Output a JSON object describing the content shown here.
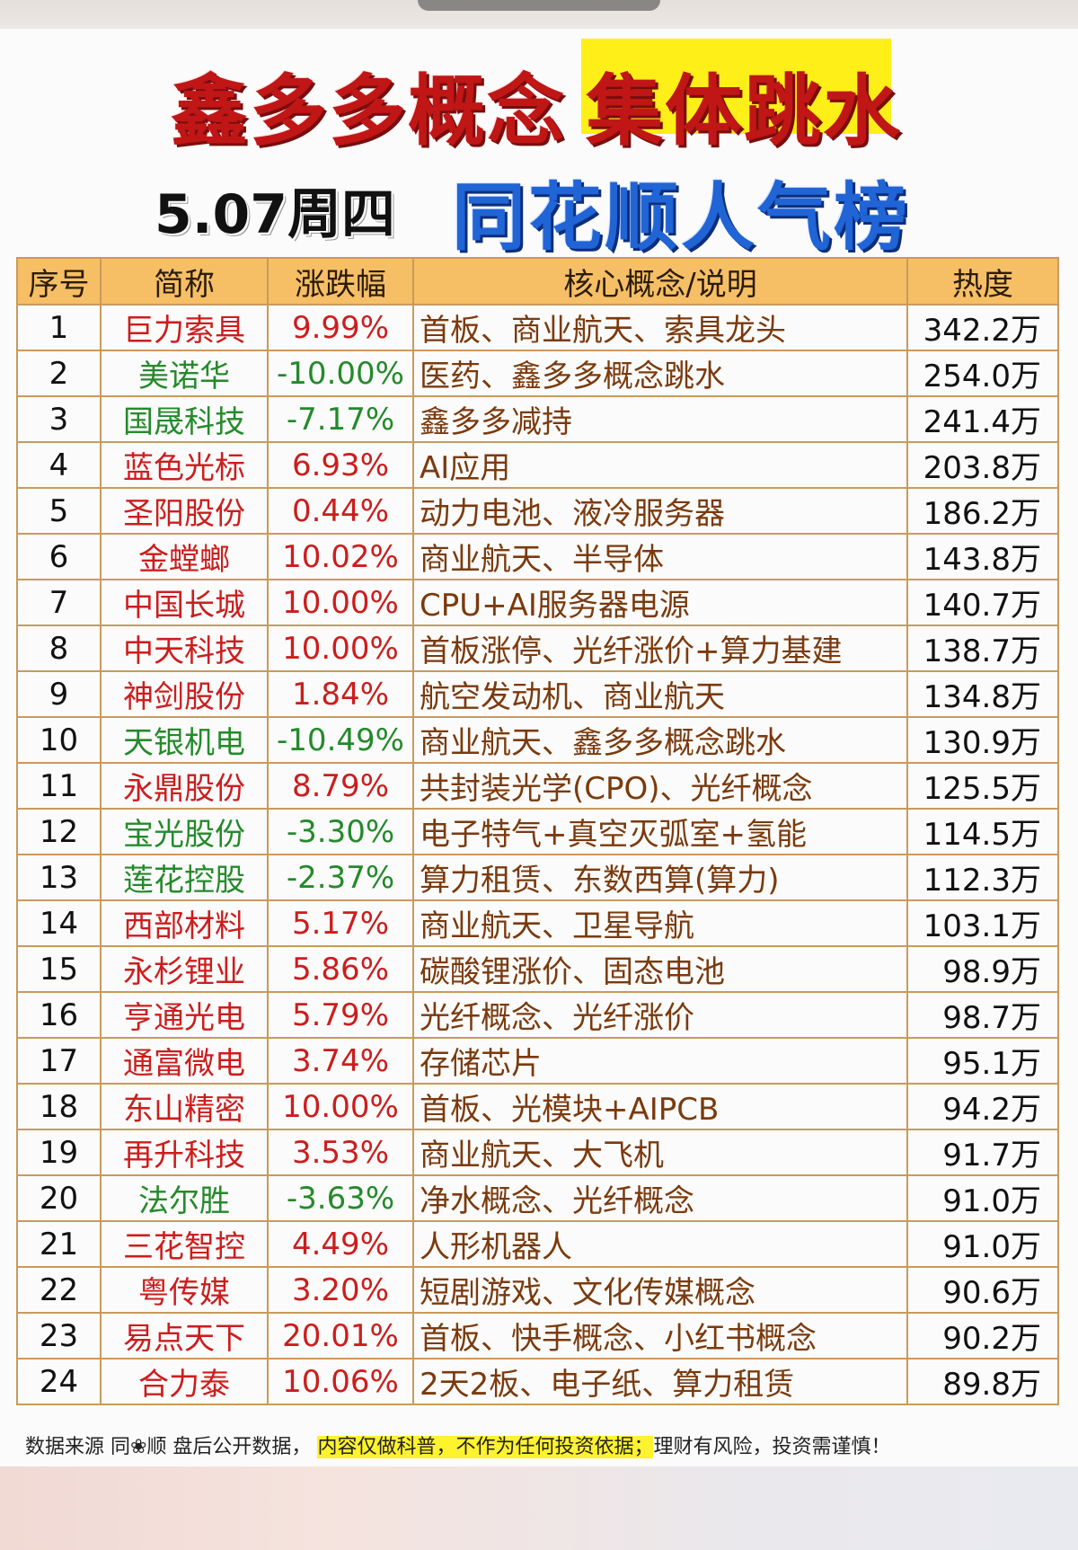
{
  "colors": {
    "title_red": "#c01616",
    "highlight_yellow": "#ffef18",
    "board_blue": "#2064d6",
    "header_orange": "#f6bf66",
    "up_red": "#cc1d1d",
    "down_green": "#248a2b",
    "note_brown": "#7b3a0d"
  },
  "title": {
    "part1": "鑫多多概念",
    "part2": "集体跳水"
  },
  "subtitle": {
    "date": "5.07周四",
    "board": "同花顺人气榜"
  },
  "table": {
    "headers": [
      "序号",
      "简称",
      "涨跌幅",
      "核心概念/说明",
      "热度"
    ],
    "rows": [
      {
        "no": "1",
        "name": "巨力索具",
        "chg": "9.99%",
        "dir": "up",
        "note": "首板、商业航天、索具龙头",
        "heat": "342.2万"
      },
      {
        "no": "2",
        "name": "美诺华",
        "chg": "-10.00%",
        "dir": "down",
        "note": "医药、鑫多多概念跳水",
        "heat": "254.0万"
      },
      {
        "no": "3",
        "name": "国晟科技",
        "chg": "-7.17%",
        "dir": "down",
        "note": "鑫多多减持",
        "heat": "241.4万"
      },
      {
        "no": "4",
        "name": "蓝色光标",
        "chg": "6.93%",
        "dir": "up",
        "note": "AI应用",
        "heat": "203.8万"
      },
      {
        "no": "5",
        "name": "圣阳股份",
        "chg": "0.44%",
        "dir": "up",
        "note": "动力电池、液冷服务器",
        "heat": "186.2万"
      },
      {
        "no": "6",
        "name": "金螳螂",
        "chg": "10.02%",
        "dir": "up",
        "note": "商业航天、半导体",
        "heat": "143.8万"
      },
      {
        "no": "7",
        "name": "中国长城",
        "chg": "10.00%",
        "dir": "up",
        "note": "CPU+AI服务器电源",
        "heat": "140.7万"
      },
      {
        "no": "8",
        "name": "中天科技",
        "chg": "10.00%",
        "dir": "up",
        "note": "首板涨停、光纤涨价+算力基建",
        "heat": "138.7万"
      },
      {
        "no": "9",
        "name": "神剑股份",
        "chg": "1.84%",
        "dir": "up",
        "note": "航空发动机、商业航天",
        "heat": "134.8万"
      },
      {
        "no": "10",
        "name": "天银机电",
        "chg": "-10.49%",
        "dir": "down",
        "note": "商业航天、鑫多多概念跳水",
        "heat": "130.9万"
      },
      {
        "no": "11",
        "name": "永鼎股份",
        "chg": "8.79%",
        "dir": "up",
        "note": "共封装光学(CPO)、光纤概念",
        "heat": "125.5万"
      },
      {
        "no": "12",
        "name": "宝光股份",
        "chg": "-3.30%",
        "dir": "down",
        "note": "电子特气+真空灭弧室+氢能",
        "heat": "114.5万"
      },
      {
        "no": "13",
        "name": "莲花控股",
        "chg": "-2.37%",
        "dir": "down",
        "note": "算力租赁、东数西算(算力)",
        "heat": "112.3万"
      },
      {
        "no": "14",
        "name": "西部材料",
        "chg": "5.17%",
        "dir": "up",
        "note": "商业航天、卫星导航",
        "heat": "103.1万"
      },
      {
        "no": "15",
        "name": "永杉锂业",
        "chg": "5.86%",
        "dir": "up",
        "note": "碳酸锂涨价、固态电池",
        "heat": "98.9万"
      },
      {
        "no": "16",
        "name": "亨通光电",
        "chg": "5.79%",
        "dir": "up",
        "note": "光纤概念、光纤涨价",
        "heat": "98.7万"
      },
      {
        "no": "17",
        "name": "通富微电",
        "chg": "3.74%",
        "dir": "up",
        "note": "存储芯片",
        "heat": "95.1万"
      },
      {
        "no": "18",
        "name": "东山精密",
        "chg": "10.00%",
        "dir": "up",
        "note": "首板、光模块+AIPCB",
        "heat": "94.2万"
      },
      {
        "no": "19",
        "name": "再升科技",
        "chg": "3.53%",
        "dir": "up",
        "note": "商业航天、大飞机",
        "heat": "91.7万"
      },
      {
        "no": "20",
        "name": "法尔胜",
        "chg": "-3.63%",
        "dir": "down",
        "note": "净水概念、光纤概念",
        "heat": "91.0万"
      },
      {
        "no": "21",
        "name": "三花智控",
        "chg": "4.49%",
        "dir": "up",
        "note": "人形机器人",
        "heat": "91.0万"
      },
      {
        "no": "22",
        "name": "粤传媒",
        "chg": "3.20%",
        "dir": "up",
        "note": "短剧游戏、文化传媒概念",
        "heat": "90.6万"
      },
      {
        "no": "23",
        "name": "易点天下",
        "chg": "20.01%",
        "dir": "up",
        "note": "首板、快手概念、小红书概念",
        "heat": "90.2万"
      },
      {
        "no": "24",
        "name": "合力泰",
        "chg": "10.06%",
        "dir": "up",
        "note": "2天2板、电子纸、算力租赁",
        "heat": "89.8万"
      }
    ]
  },
  "footer": {
    "source": "数据来源 同",
    "logo_icon": "flower-icon",
    "source_tail": "顺 盘后公开数据，",
    "highlight": "内容仅做科普，不作为任何投资依据；",
    "risk": "理财有风险，投资需谨慎！"
  }
}
